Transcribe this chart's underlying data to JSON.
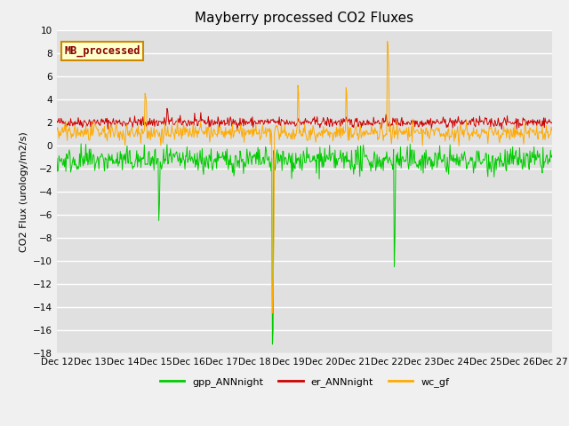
{
  "title": "Mayberry processed CO2 Fluxes",
  "ylabel": "CO2 Flux (urology/m2/s)",
  "ylim": [
    -18,
    10
  ],
  "yticks": [
    -18,
    -16,
    -14,
    -12,
    -10,
    -8,
    -6,
    -4,
    -2,
    0,
    2,
    4,
    6,
    8,
    10
  ],
  "color_gpp": "#00cc00",
  "color_er": "#cc0000",
  "color_wc": "#ffaa00",
  "legend_label": "MB_processed",
  "legend_series": [
    "gpp_ANNnight",
    "er_ANNnight",
    "wc_gf"
  ],
  "bg_color": "#e0e0e0",
  "fig_bg": "#f0f0f0",
  "title_fontsize": 11,
  "label_fontsize": 8,
  "tick_fontsize": 7.5,
  "linewidth": 0.7,
  "n_days": 15,
  "n_per_day": 48,
  "xstart_day": 12,
  "xtick_days": [
    12,
    13,
    14,
    15,
    16,
    17,
    18,
    19,
    20,
    21,
    22,
    23,
    24,
    25,
    26,
    27
  ]
}
